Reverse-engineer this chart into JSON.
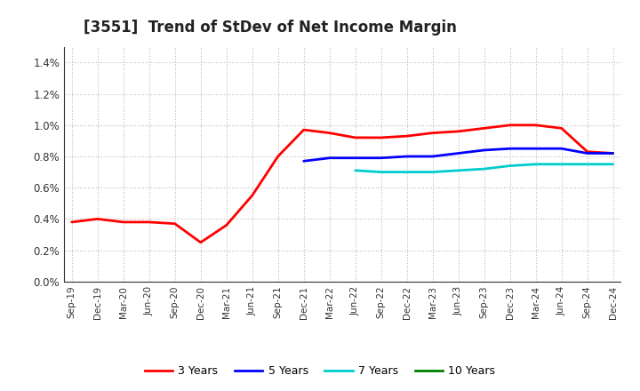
{
  "title": "[3551]  Trend of StDev of Net Income Margin",
  "x_labels": [
    "Sep-19",
    "Dec-19",
    "Mar-20",
    "Jun-20",
    "Sep-20",
    "Dec-20",
    "Mar-21",
    "Jun-21",
    "Sep-21",
    "Dec-21",
    "Mar-22",
    "Jun-22",
    "Sep-22",
    "Dec-22",
    "Mar-23",
    "Jun-23",
    "Sep-23",
    "Dec-23",
    "Mar-24",
    "Jun-24",
    "Sep-24",
    "Dec-24"
  ],
  "y_min": 0.0,
  "y_max": 0.015,
  "y_ticks": [
    0.0,
    0.002,
    0.004,
    0.006,
    0.008,
    0.01,
    0.012,
    0.014
  ],
  "series_3y": [
    0.0038,
    0.004,
    0.0038,
    0.0038,
    0.0037,
    0.0025,
    0.0036,
    0.0055,
    0.008,
    0.0097,
    0.0095,
    0.0092,
    0.0092,
    0.0093,
    0.0095,
    0.0096,
    0.0098,
    0.01,
    0.01,
    0.0098,
    0.0083,
    0.0082
  ],
  "series_5y": [
    null,
    null,
    null,
    null,
    null,
    null,
    null,
    null,
    null,
    0.0077,
    0.0079,
    0.0079,
    0.0079,
    0.008,
    0.008,
    0.0082,
    0.0084,
    0.0085,
    0.0085,
    0.0085,
    0.0082,
    0.0082
  ],
  "series_7y": [
    null,
    null,
    null,
    null,
    null,
    null,
    null,
    null,
    null,
    null,
    null,
    0.0071,
    0.007,
    0.007,
    0.007,
    0.0071,
    0.0072,
    0.0074,
    0.0075,
    0.0075,
    0.0075,
    0.0075
  ],
  "series_10y": [
    null,
    null,
    null,
    null,
    null,
    null,
    null,
    null,
    null,
    null,
    null,
    null,
    null,
    null,
    null,
    null,
    null,
    null,
    null,
    null,
    null,
    null
  ],
  "color_3y": "#ff0000",
  "color_5y": "#0000ff",
  "color_7y": "#00cccc",
  "color_10y": "#008000",
  "bg_color": "#ffffff",
  "grid_color": "#bbbbbb",
  "title_fontsize": 12,
  "legend_labels": [
    "3 Years",
    "5 Years",
    "7 Years",
    "10 Years"
  ]
}
